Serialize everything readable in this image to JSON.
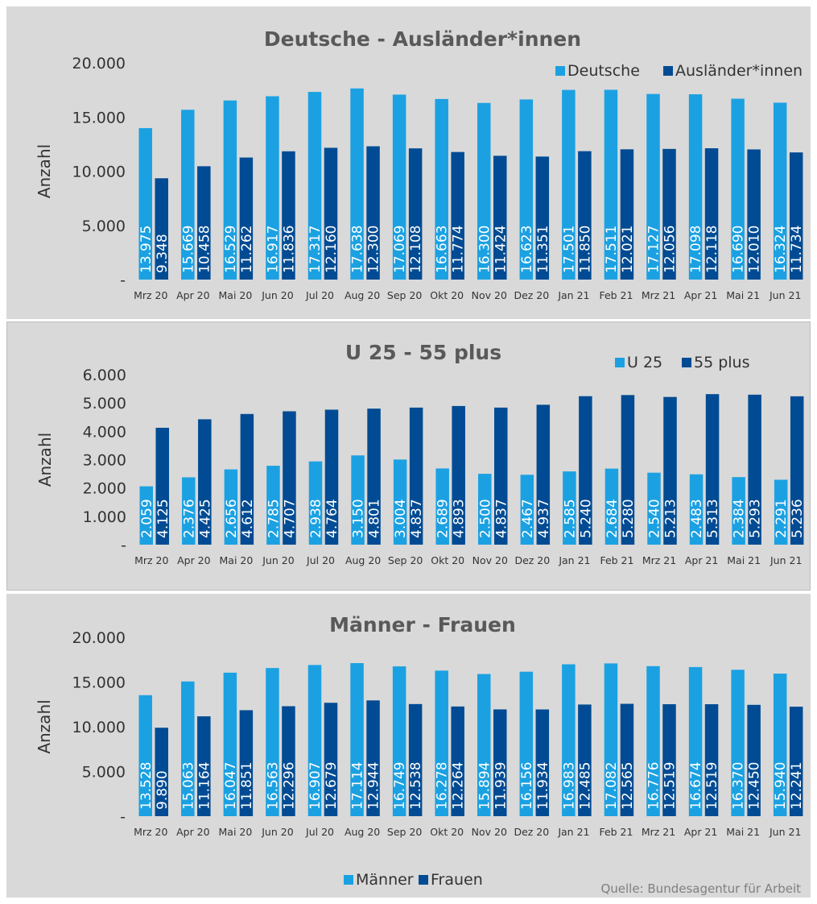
{
  "colors": {
    "primary": "#1ba1e2",
    "secondary": "#004b93",
    "panel": "#d9d9d9"
  },
  "source": "Quelle: Bundesagentur für Arbeit",
  "chart_data": [
    {
      "type": "bar",
      "title": "Deutsche - Ausländer*innen",
      "ylabel": "Anzahl",
      "ylim": [
        0,
        20000
      ],
      "yticks": [
        "-",
        "5.000",
        "10.000",
        "15.000",
        "20.000"
      ],
      "legend_position": "top-right",
      "categories": [
        "Mrz 20",
        "Apr 20",
        "Mai 20",
        "Jun 20",
        "Jul 20",
        "Aug 20",
        "Sep 20",
        "Okt 20",
        "Nov 20",
        "Dez 20",
        "Jan 21",
        "Feb 21",
        "Mrz 21",
        "Apr 21",
        "Mai 21",
        "Jun 21"
      ],
      "series": [
        {
          "name": "Deutsche",
          "values": [
            13975,
            15669,
            16529,
            16917,
            17317,
            17638,
            17069,
            16663,
            16300,
            16623,
            17501,
            17511,
            17127,
            17098,
            16690,
            16324
          ],
          "labels": [
            "13.975",
            "15.669",
            "16.529",
            "16.917",
            "17.317",
            "17.638",
            "17.069",
            "16.663",
            "16.300",
            "16.623",
            "17.501",
            "17.511",
            "17.127",
            "17.098",
            "16.690",
            "16.324"
          ]
        },
        {
          "name": "Ausländer*innen",
          "values": [
            9348,
            10458,
            11262,
            11836,
            12160,
            12300,
            12108,
            11774,
            11424,
            11351,
            11850,
            12021,
            12056,
            12118,
            12010,
            11734
          ],
          "labels": [
            "9.348",
            "10.458",
            "11.262",
            "11.836",
            "12.160",
            "12.300",
            "12.108",
            "11.774",
            "11.424",
            "11.351",
            "11.850",
            "12.021",
            "12.056",
            "12.118",
            "12.010",
            "11.734"
          ]
        }
      ]
    },
    {
      "type": "bar",
      "title": "U 25 - 55 plus",
      "ylabel": "Anzahl",
      "ylim": [
        0,
        6000
      ],
      "yticks": [
        "-",
        "1.000",
        "2.000",
        "3.000",
        "4.000",
        "5.000",
        "6.000"
      ],
      "legend_position": "top-right",
      "categories": [
        "Mrz 20",
        "Apr 20",
        "Mai 20",
        "Jun 20",
        "Jul 20",
        "Aug 20",
        "Sep 20",
        "Okt 20",
        "Nov 20",
        "Dez 20",
        "Jan 21",
        "Feb 21",
        "Mrz 21",
        "Apr 21",
        "Mai 21",
        "Jun 21"
      ],
      "series": [
        {
          "name": "U 25",
          "values": [
            2059,
            2376,
            2656,
            2785,
            2938,
            3150,
            3004,
            2689,
            2500,
            2467,
            2585,
            2684,
            2540,
            2483,
            2384,
            2291
          ],
          "labels": [
            "2.059",
            "2.376",
            "2.656",
            "2.785",
            "2.938",
            "3.150",
            "3.004",
            "2.689",
            "2.500",
            "2.467",
            "2.585",
            "2.684",
            "2.540",
            "2.483",
            "2.384",
            "2.291"
          ]
        },
        {
          "name": "55 plus",
          "values": [
            4125,
            4425,
            4612,
            4707,
            4764,
            4801,
            4837,
            4893,
            4837,
            4937,
            5240,
            5280,
            5213,
            5313,
            5293,
            5236
          ],
          "labels": [
            "4.125",
            "4.425",
            "4.612",
            "4.707",
            "4.764",
            "4.801",
            "4.837",
            "4.893",
            "4.837",
            "4.937",
            "5.240",
            "5.280",
            "5.213",
            "5.313",
            "5.293",
            "5.236"
          ]
        }
      ]
    },
    {
      "type": "bar",
      "title": "Männer - Frauen",
      "ylabel": "Anzahl",
      "ylim": [
        0,
        20000
      ],
      "yticks": [
        "-",
        "5.000",
        "10.000",
        "15.000",
        "20.000"
      ],
      "legend_position": "bottom",
      "categories": [
        "Mrz 20",
        "Apr 20",
        "Mai 20",
        "Jun 20",
        "Jul 20",
        "Aug 20",
        "Sep 20",
        "Okt 20",
        "Nov 20",
        "Dez 20",
        "Jan 21",
        "Feb 21",
        "Mrz 21",
        "Apr 21",
        "Mai 21",
        "Jun 21"
      ],
      "series": [
        {
          "name": "Männer",
          "values": [
            13528,
            15063,
            16047,
            16563,
            16907,
            17114,
            16749,
            16278,
            15894,
            16156,
            16983,
            17082,
            16776,
            16674,
            16370,
            15940
          ],
          "labels": [
            "13.528",
            "15.063",
            "16.047",
            "16.563",
            "16.907",
            "17.114",
            "16.749",
            "16.278",
            "15.894",
            "16.156",
            "16.983",
            "17.082",
            "16.776",
            "16.674",
            "16.370",
            "15.940"
          ]
        },
        {
          "name": "Frauen",
          "values": [
            9890,
            11164,
            11851,
            12296,
            12679,
            12944,
            12538,
            12264,
            11939,
            11934,
            12485,
            12565,
            12519,
            12519,
            12450,
            12241
          ],
          "labels": [
            "9.890",
            "11.164",
            "11.851",
            "12.296",
            "12.679",
            "12.944",
            "12.538",
            "12.264",
            "11.939",
            "11.934",
            "12.485",
            "12.565",
            "12.519",
            "12.519",
            "12.450",
            "12.241"
          ]
        }
      ]
    }
  ]
}
